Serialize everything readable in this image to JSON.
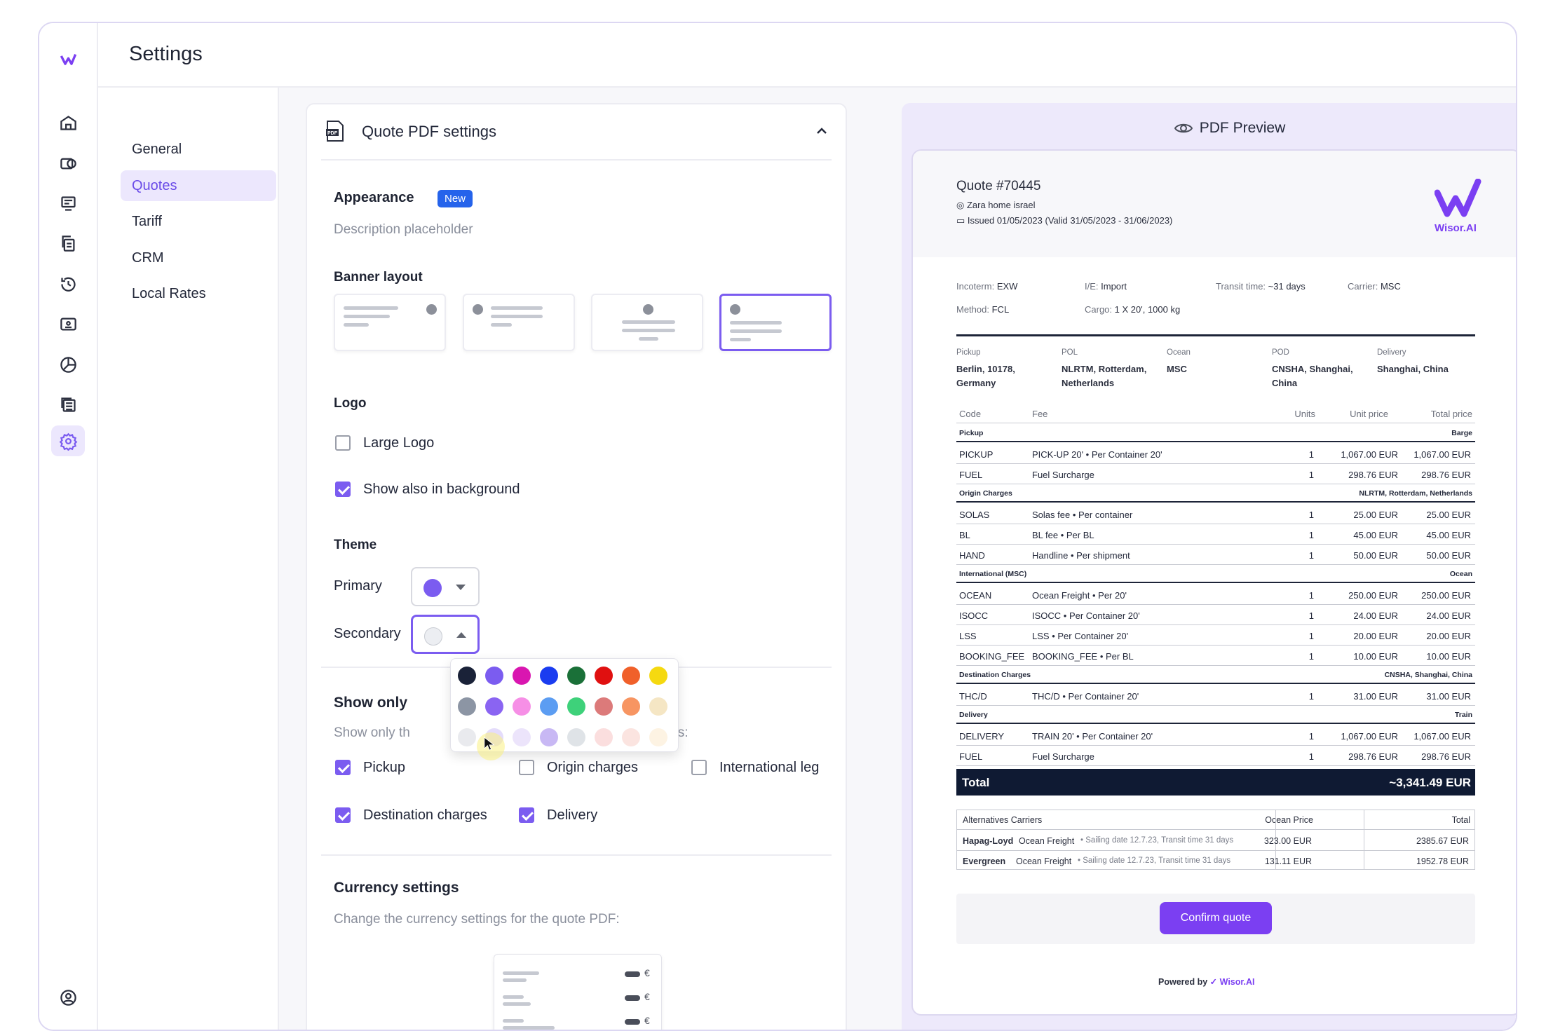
{
  "app": {
    "title": "Settings"
  },
  "rail": {
    "icons": [
      "logo-icon",
      "home-icon",
      "money-icon",
      "invoice-icon",
      "documents-icon",
      "history-icon",
      "id-card-icon",
      "pie-chart-icon",
      "calculator-icon",
      "settings-icon",
      "user-icon"
    ]
  },
  "subnav": {
    "items": [
      "General",
      "Quotes",
      "Tariff",
      "CRM",
      "Local Rates"
    ],
    "active": "Quotes"
  },
  "panel": {
    "title": "Quote PDF settings",
    "appearance": {
      "label": "Appearance",
      "badge": "New",
      "description": "Description placeholder"
    },
    "banner_layout": {
      "label": "Banner layout",
      "selected_index": 3
    },
    "logo": {
      "label": "Logo",
      "large_logo": {
        "label": "Large Logo",
        "checked": false
      },
      "background": {
        "label": "Show also in background",
        "checked": true
      }
    },
    "theme": {
      "label": "Theme",
      "primary": {
        "label": "Primary",
        "color": "#7b5cf0"
      },
      "secondary": {
        "label": "Secondary",
        "color": "#eceef2"
      }
    },
    "palette": [
      [
        "#1a2238",
        "#7b5cf0",
        "#d916b0",
        "#1a3cf0",
        "#1a7038",
        "#e01010",
        "#f0602a",
        "#f5d910"
      ],
      [
        "#8c95a4",
        "#8a64f2",
        "#f68fe6",
        "#5c9df2",
        "#3ed17a",
        "#dc7a7a",
        "#f79562",
        "#f5e6c4"
      ],
      [
        "#e9eaee",
        "#e4dcfb",
        "#ece4fb",
        "#c8b8f4",
        "#dfe3e7",
        "#fbdede",
        "#fbe4e0",
        "#fdf3e3"
      ]
    ],
    "show_only": {
      "label": "Show only",
      "description_start": "Show only th",
      "description_end": "gments:",
      "options": [
        {
          "label": "Pickup",
          "checked": true
        },
        {
          "label": "Origin charges",
          "checked": false
        },
        {
          "label": "International leg",
          "checked": false
        },
        {
          "label": "Destination charges",
          "checked": true
        },
        {
          "label": "Delivery",
          "checked": true
        }
      ]
    },
    "currency": {
      "label": "Currency settings",
      "description": "Change the currency settings for the quote PDF:",
      "symbols": [
        "€",
        "€",
        "€"
      ]
    }
  },
  "preview": {
    "header": "PDF Preview",
    "quote_no": "Quote #70445",
    "customer": "Zara home israel",
    "issued": "Issued 01/05/2023 (Valid 31/05/2023 -  31/06/2023)",
    "brand": "Wisor.AI",
    "meta": [
      [
        "Incoterm:",
        "EXW"
      ],
      [
        "I/E:",
        "Import"
      ],
      [
        "Transit time:",
        "~31 days"
      ],
      [
        "Carrier:",
        "MSC"
      ],
      [
        "Method:",
        "FCL"
      ],
      [
        "Cargo:",
        "1 X 20', 1000 kg"
      ]
    ],
    "route": [
      {
        "label": "Pickup",
        "value": "Berlin, 10178, Germany"
      },
      {
        "label": "POL",
        "value": "NLRTM, Rotterdam, Netherlands"
      },
      {
        "label": "Ocean",
        "value": "MSC"
      },
      {
        "label": "POD",
        "value": "CNSHA, Shanghai, China"
      },
      {
        "label": "Delivery",
        "value": "Shanghai, China"
      }
    ],
    "table_headers": [
      "Code",
      "Fee",
      "Units",
      "Unit price",
      "Total price"
    ],
    "groups": [
      {
        "name": "Pickup",
        "right": "Barge",
        "rows": [
          [
            "PICKUP",
            "PICK-UP 20'",
            "Per Container 20'",
            "1",
            "1,067.00 EUR",
            "1,067.00 EUR"
          ],
          [
            "FUEL",
            "Fuel Surcharge",
            "",
            "1",
            "298.76 EUR",
            "298.76 EUR"
          ]
        ]
      },
      {
        "name": "Origin Charges",
        "right": "NLRTM, Rotterdam, Netherlands",
        "rows": [
          [
            "SOLAS",
            "Solas fee",
            "Per container",
            "1",
            "25.00 EUR",
            "25.00 EUR"
          ],
          [
            "BL",
            "BL fee",
            "Per BL",
            "1",
            "45.00 EUR",
            "45.00 EUR"
          ],
          [
            "HAND",
            "Handline",
            "Per shipment",
            "1",
            "50.00 EUR",
            "50.00 EUR"
          ]
        ]
      },
      {
        "name": "International (MSC)",
        "right": "Ocean",
        "rows": [
          [
            "OCEAN",
            "Ocean Freight",
            "Per 20'",
            "1",
            "250.00 EUR",
            "250.00 EUR"
          ],
          [
            "ISOCC",
            "ISOCC",
            "Per Container 20'",
            "1",
            "24.00 EUR",
            "24.00 EUR"
          ],
          [
            "LSS",
            "LSS",
            "Per Container 20'",
            "1",
            "20.00 EUR",
            "20.00 EUR"
          ],
          [
            "BOOKING_FEE",
            "BOOKING_FEE",
            "Per BL",
            "1",
            "10.00 EUR",
            "10.00 EUR"
          ]
        ]
      },
      {
        "name": "Destination Charges",
        "right": "CNSHA, Shanghai, China",
        "rows": [
          [
            "THC/D",
            "THC/D",
            "Per Container 20'",
            "1",
            "31.00 EUR",
            "31.00 EUR"
          ]
        ]
      },
      {
        "name": "Delivery",
        "right": "Train",
        "rows": [
          [
            "DELIVERY",
            "TRAIN 20'",
            "Per Container 20'",
            "1",
            "1,067.00 EUR",
            "1,067.00 EUR"
          ],
          [
            "FUEL",
            "Fuel Surcharge",
            "",
            "1",
            "298.76 EUR",
            "298.76 EUR"
          ]
        ]
      }
    ],
    "total": {
      "label": "Total",
      "value": "~3,341.49 EUR"
    },
    "alternatives": {
      "headers": [
        "Alternatives Carriers",
        "Ocean Price",
        "Total"
      ],
      "rows": [
        {
          "carrier": "Hapag-Loyd",
          "fee": "Ocean Freight",
          "detail": "Sailing date 12.7.23, Transit time 31 days",
          "price": "323.00 EUR",
          "total": "2385.67 EUR"
        },
        {
          "carrier": "Evergreen",
          "fee": "Ocean Freight",
          "detail": "Sailing date 12.7.23, Transit time 31 days",
          "price": "131.11 EUR",
          "total": "1952.78 EUR"
        }
      ]
    },
    "confirm": "Confirm quote",
    "powered": "Powered by",
    "powered_brand": "Wisor.AI"
  }
}
